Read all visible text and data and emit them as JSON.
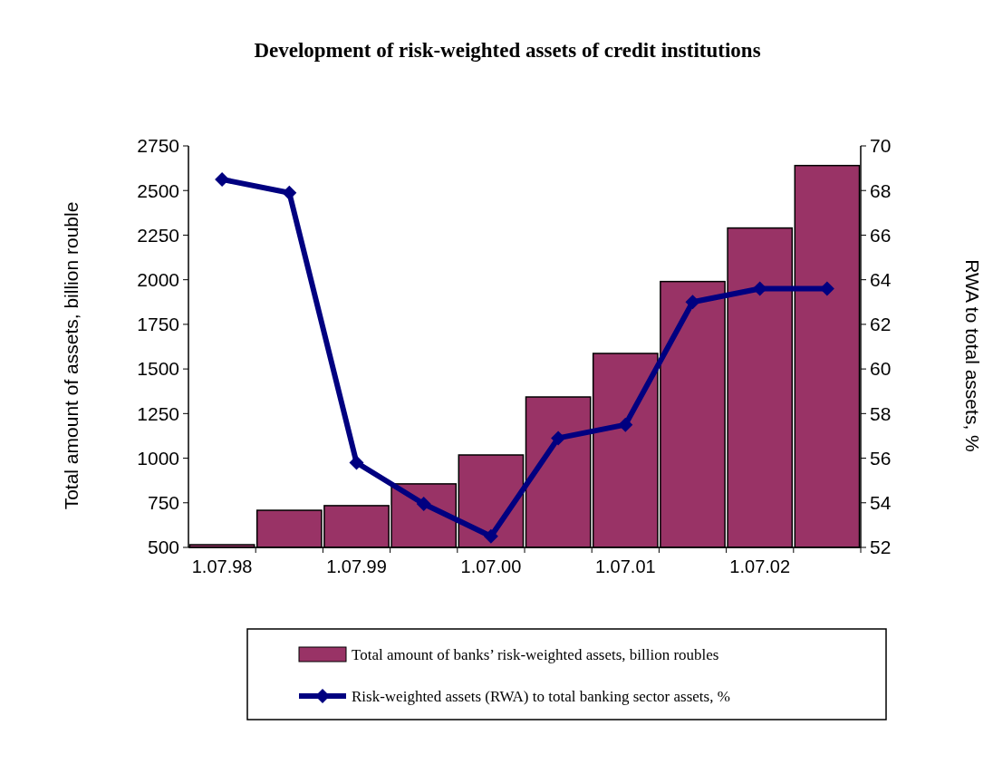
{
  "chart_data": {
    "type": "bar",
    "title": "Development of risk-weighted assets of credit institutions",
    "ylabel": "Total amount of assets, billion rouble",
    "y2label": "RWA to total assets, %",
    "categories": [
      "1.07.98",
      null,
      "1.07.99",
      null,
      "1.07.00",
      null,
      "1.07.01",
      null,
      "1.07.02",
      null
    ],
    "series": [
      {
        "name": "Total amount of banks’ risk-weighted assets, billion roubles",
        "color": "#993366",
        "values": [
          515,
          708,
          734,
          856,
          1018,
          1343,
          1587,
          1990,
          2290,
          2640
        ]
      },
      {
        "name": "Risk-weighted assets (RWA) to total banking sector assets, %",
        "type": "line",
        "axis": "y2",
        "color": "#000080",
        "marker": "diamond",
        "values": [
          68.5,
          67.9,
          55.8,
          53.95,
          52.5,
          56.9,
          57.5,
          63.0,
          63.6,
          63.6
        ]
      }
    ],
    "ylim": [
      500,
      2750
    ],
    "yticks": [
      500,
      750,
      1000,
      1250,
      1500,
      1750,
      2000,
      2250,
      2500,
      2750
    ],
    "y2lim": [
      52,
      70
    ],
    "y2ticks": [
      52,
      54,
      56,
      58,
      60,
      62,
      64,
      66,
      68,
      70
    ],
    "legend": "bottom",
    "grid": false
  }
}
